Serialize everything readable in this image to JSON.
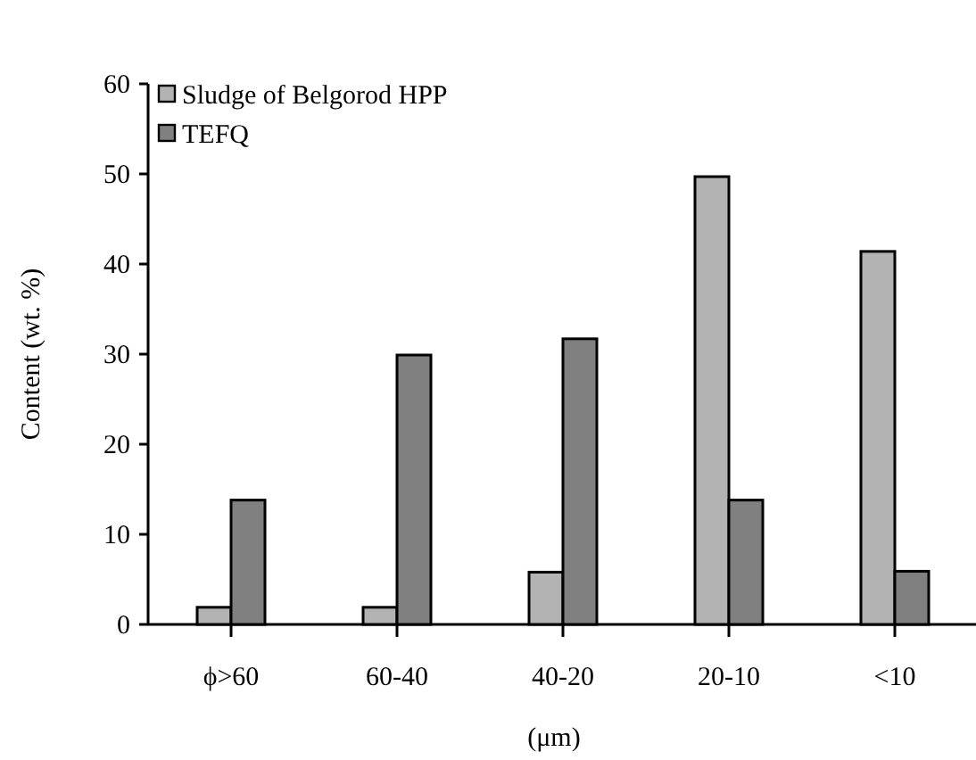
{
  "chart_data": {
    "type": "bar",
    "xlabel": "(μm)",
    "ylabel": "Content (wt. %)",
    "categories": [
      "ϕ>60",
      "60-40",
      "40-20",
      "20-10",
      "<10"
    ],
    "series": [
      {
        "name": "Sludge of Belgorod HPP",
        "color": "#b3b3b3",
        "values": [
          1.9,
          1.9,
          5.8,
          49.7,
          41.4
        ]
      },
      {
        "name": "TEFQ",
        "color": "#808080",
        "values": [
          13.8,
          29.9,
          31.7,
          13.8,
          5.9
        ]
      }
    ],
    "ylim": [
      0,
      60
    ],
    "yticks": [
      0,
      10,
      20,
      30,
      40,
      50,
      60
    ],
    "legend": "top left"
  }
}
